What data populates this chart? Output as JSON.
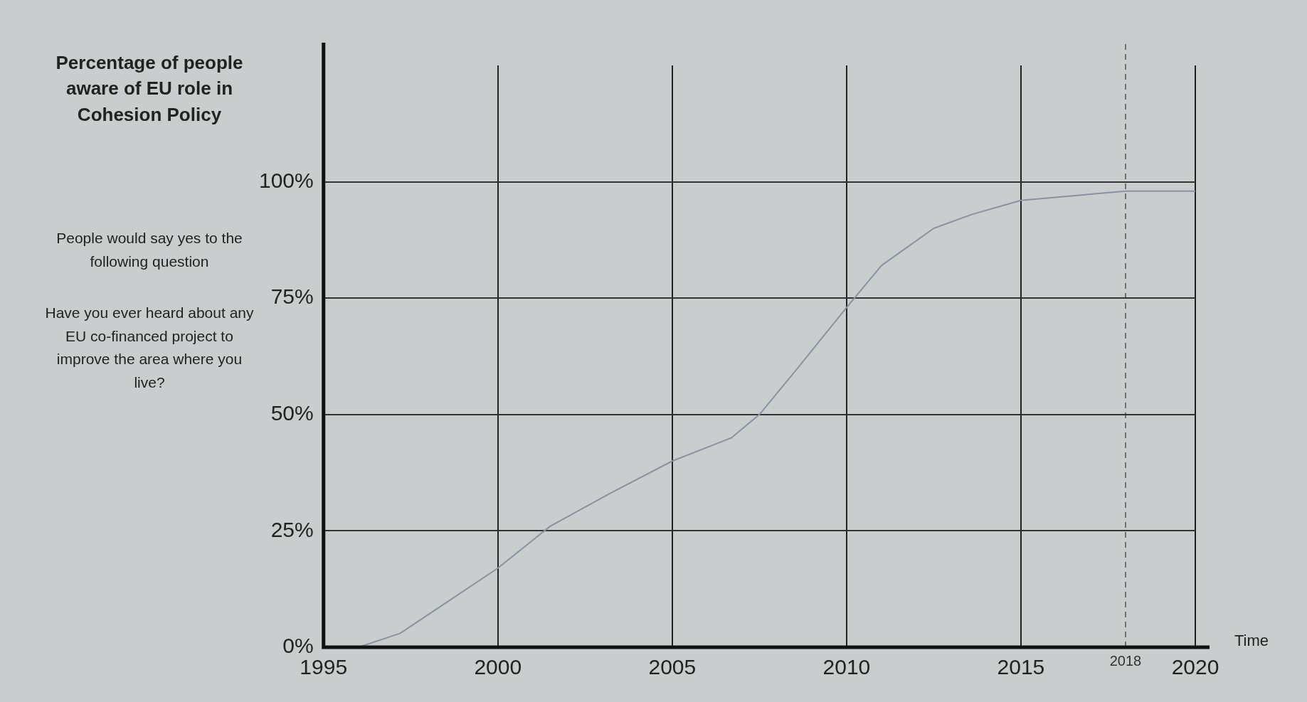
{
  "chart_data": {
    "type": "line",
    "ylabel": "Percentage of people aware of EU role in Cohesion Policy",
    "xlabel": "Time",
    "annotations": [
      "People would say yes to the following question",
      "Have you ever heard about any EU co-financed project to improve the area where you live?"
    ],
    "x": [
      1995,
      1996,
      1997.2,
      1998.6,
      2000,
      2001.5,
      2003.2,
      2005,
      2006.7,
      2007.5,
      2008.6,
      2010,
      2011,
      2012.5,
      2013.6,
      2015,
      2016.5,
      2018,
      2020
    ],
    "series": [
      {
        "color": "#8792a6",
        "values": [
          0,
          0,
          3,
          10,
          17,
          26,
          33,
          40,
          45,
          50,
          60,
          73,
          82,
          90,
          93,
          96,
          97,
          98,
          98
        ]
      }
    ],
    "xlim": [
      1995,
      2020
    ],
    "xticks": [
      1995,
      2000,
      2005,
      2010,
      2015,
      2020
    ],
    "ylim": [
      0,
      125
    ],
    "yticks": [
      {
        "value": 0,
        "label": "0%"
      },
      {
        "value": 25,
        "label": "25%"
      },
      {
        "value": 50,
        "label": "50%"
      },
      {
        "value": 75,
        "label": "75%"
      },
      {
        "value": 100,
        "label": "100%"
      }
    ],
    "ref_lines": [
      {
        "axis": "x",
        "value": 2018,
        "label": "2018",
        "line_style": "dashed"
      }
    ],
    "grid": true,
    "legend": false,
    "marker": "none",
    "line_style": "solid"
  }
}
